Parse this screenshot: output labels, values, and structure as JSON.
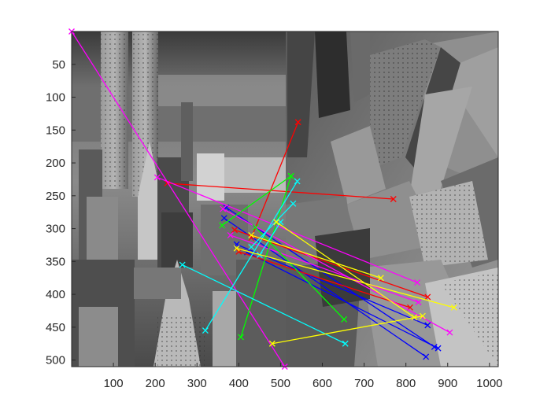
{
  "chart_data": {
    "type": "scatter",
    "title": "",
    "xlabel": "",
    "ylabel": "",
    "xlim": [
      0,
      1021
    ],
    "ylim": [
      0,
      510
    ],
    "y_reversed": true,
    "xticks": [
      100,
      200,
      300,
      400,
      500,
      600,
      700,
      800,
      900,
      1000
    ],
    "yticks": [
      50,
      100,
      150,
      200,
      250,
      300,
      350,
      400,
      450,
      500
    ],
    "grid": false,
    "legend": "none",
    "background": "grayscale aerial photo of city skyscrapers (stitched pair of images)",
    "series": [
      {
        "color": "#0000ff",
        "segments": [
          [
            [
              370,
              268
            ],
            [
              868,
              480
            ]
          ],
          [
            [
              365,
              284
            ],
            [
              848,
              495
            ]
          ],
          [
            [
              420,
              336
            ],
            [
              877,
              482
            ]
          ],
          [
            [
              395,
              324
            ],
            [
              852,
              447
            ]
          ]
        ]
      },
      {
        "color": "#ff0000",
        "segments": [
          [
            [
              229,
              231
            ],
            [
              770,
              255
            ]
          ],
          [
            [
              390,
              302
            ],
            [
              852,
              404
            ]
          ],
          [
            [
              430,
              314
            ],
            [
              542,
              138
            ]
          ],
          [
            [
              400,
              335
            ],
            [
              810,
              420
            ]
          ]
        ]
      },
      {
        "color": "#ff00ff",
        "segments": [
          [
            [
              0,
              0
            ],
            [
              510,
              510
            ]
          ],
          [
            [
              205,
              222
            ],
            [
              827,
              382
            ]
          ],
          [
            [
              362,
              270
            ],
            [
              905,
              458
            ]
          ],
          [
            [
              380,
              310
            ],
            [
              830,
              412
            ]
          ]
        ]
      },
      {
        "color": "#00ff00",
        "segments": [
          [
            [
              360,
              295
            ],
            [
              525,
              220
            ]
          ],
          [
            [
              405,
              465
            ],
            [
              525,
              220
            ]
          ],
          [
            [
              440,
              298
            ],
            [
              652,
              438
            ]
          ]
        ]
      },
      {
        "color": "#00ffff",
        "segments": [
          [
            [
              265,
              355
            ],
            [
              655,
              475
            ]
          ],
          [
            [
              320,
              455
            ],
            [
              540,
              228
            ]
          ],
          [
            [
              430,
              328
            ],
            [
              530,
              262
            ]
          ],
          [
            [
              450,
              340
            ],
            [
              500,
              290
            ]
          ]
        ]
      },
      {
        "color": "#ffff00",
        "segments": [
          [
            [
              395,
              330
            ],
            [
              915,
              420
            ]
          ],
          [
            [
              480,
              475
            ],
            [
              840,
              433
            ]
          ],
          [
            [
              490,
              290
            ],
            [
              820,
              435
            ]
          ],
          [
            [
              430,
              310
            ],
            [
              740,
              375
            ]
          ]
        ]
      }
    ]
  }
}
